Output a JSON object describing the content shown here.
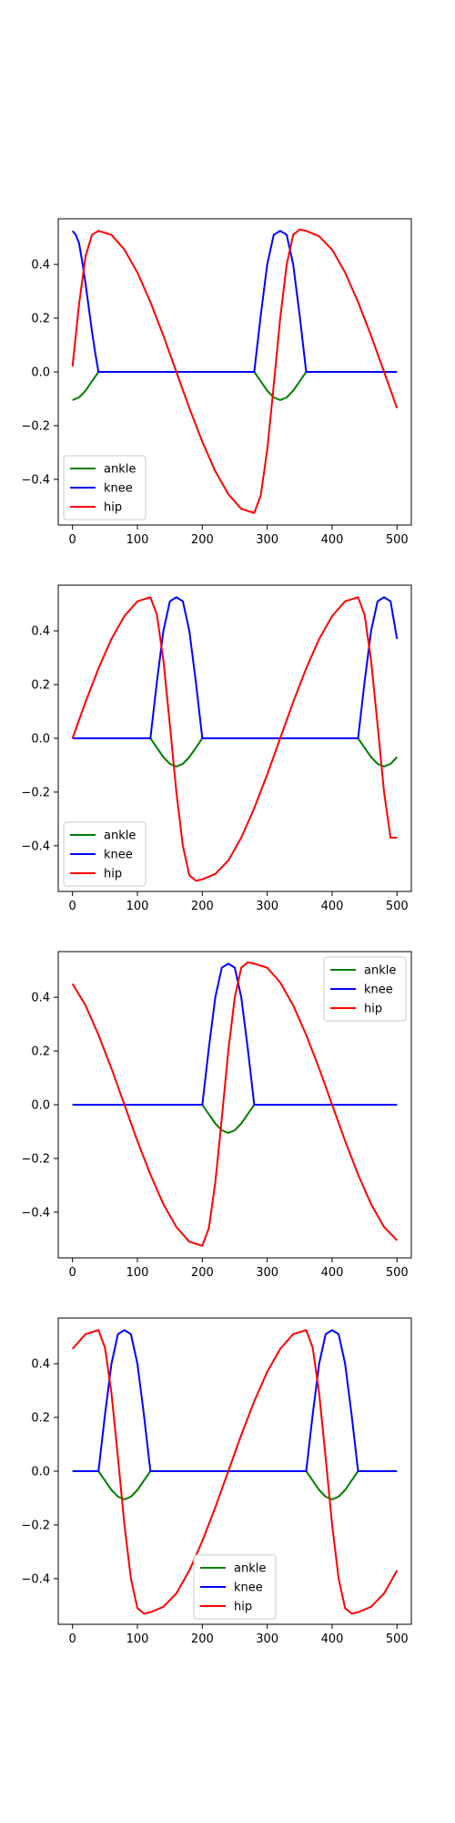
{
  "chart_data": [
    {
      "type": "line",
      "xlim": [
        -22,
        522
      ],
      "ylim": [
        -0.57,
        0.57
      ],
      "xticks": [
        0,
        100,
        200,
        300,
        400,
        500
      ],
      "yticks": [
        -0.4,
        -0.2,
        0.0,
        0.2,
        0.4
      ],
      "xtick_labels": [
        "0",
        "100",
        "200",
        "300",
        "400",
        "500"
      ],
      "ytick_labels": [
        "−0.4",
        "−0.2",
        "0.0",
        "0.2",
        "0.4"
      ],
      "legend": {
        "placement": "lower-left",
        "labels": [
          "ankle",
          "knee",
          "hip"
        ]
      },
      "series": [
        {
          "name": "ankle",
          "color": "#008000",
          "x": [
            0,
            10,
            20,
            30,
            40,
            80,
            120,
            160,
            200,
            240,
            280,
            290,
            300,
            310,
            320,
            330,
            340,
            350,
            360,
            400,
            440,
            480,
            500
          ],
          "y": [
            -0.105,
            -0.095,
            -0.07,
            -0.035,
            0,
            0,
            0,
            0,
            0,
            0,
            0,
            -0.035,
            -0.07,
            -0.095,
            -0.105,
            -0.095,
            -0.07,
            -0.035,
            0,
            0,
            0,
            0,
            0
          ]
        },
        {
          "name": "knee",
          "color": "#0000ff",
          "x": [
            0,
            5,
            10,
            15,
            20,
            25,
            30,
            35,
            40,
            80,
            120,
            160,
            200,
            240,
            280,
            290,
            300,
            310,
            320,
            330,
            340,
            350,
            360,
            400,
            440,
            480,
            500
          ],
          "y": [
            0.525,
            0.51,
            0.48,
            0.41,
            0.33,
            0.24,
            0.15,
            0.07,
            0,
            0,
            0,
            0,
            0,
            0,
            0,
            0.21,
            0.4,
            0.51,
            0.525,
            0.51,
            0.4,
            0.21,
            0,
            0,
            0,
            0,
            0
          ]
        },
        {
          "name": "hip",
          "color": "#ff0000",
          "x": [
            0,
            10,
            20,
            30,
            40,
            60,
            80,
            100,
            120,
            140,
            160,
            180,
            200,
            220,
            240,
            260,
            280,
            290,
            300,
            310,
            320,
            330,
            340,
            350,
            360,
            380,
            400,
            420,
            440,
            460,
            480,
            500
          ],
          "y": [
            0.02,
            0.25,
            0.43,
            0.51,
            0.525,
            0.51,
            0.455,
            0.37,
            0.26,
            0.135,
            0,
            -0.135,
            -0.26,
            -0.37,
            -0.455,
            -0.51,
            -0.525,
            -0.46,
            -0.29,
            -0.05,
            0.2,
            0.4,
            0.51,
            0.53,
            0.525,
            0.505,
            0.455,
            0.37,
            0.26,
            0.135,
            0,
            -0.135
          ]
        }
      ]
    },
    {
      "type": "line",
      "xlim": [
        -22,
        522
      ],
      "ylim": [
        -0.57,
        0.57
      ],
      "xticks": [
        0,
        100,
        200,
        300,
        400,
        500
      ],
      "yticks": [
        -0.4,
        -0.2,
        0.0,
        0.2,
        0.4
      ],
      "xtick_labels": [
        "0",
        "100",
        "200",
        "300",
        "400",
        "500"
      ],
      "ytick_labels": [
        "−0.4",
        "−0.2",
        "0.0",
        "0.2",
        "0.4"
      ],
      "legend": {
        "placement": "lower-left",
        "labels": [
          "ankle",
          "knee",
          "hip"
        ]
      },
      "series": [
        {
          "name": "ankle",
          "color": "#008000",
          "x": [
            0,
            40,
            80,
            120,
            130,
            140,
            150,
            160,
            170,
            180,
            190,
            200,
            240,
            280,
            320,
            360,
            400,
            440,
            450,
            460,
            470,
            480,
            490,
            500
          ],
          "y": [
            0,
            0,
            0,
            0,
            -0.035,
            -0.07,
            -0.095,
            -0.105,
            -0.095,
            -0.07,
            -0.035,
            0,
            0,
            0,
            0,
            0,
            0,
            0,
            -0.035,
            -0.07,
            -0.095,
            -0.105,
            -0.095,
            -0.07
          ]
        },
        {
          "name": "knee",
          "color": "#0000ff",
          "x": [
            0,
            40,
            80,
            120,
            130,
            140,
            150,
            160,
            170,
            180,
            190,
            200,
            240,
            280,
            320,
            360,
            400,
            440,
            450,
            460,
            470,
            480,
            490,
            500
          ],
          "y": [
            0,
            0,
            0,
            0,
            0.21,
            0.4,
            0.51,
            0.525,
            0.51,
            0.4,
            0.21,
            0,
            0,
            0,
            0,
            0,
            0,
            0,
            0.21,
            0.4,
            0.51,
            0.525,
            0.51,
            0.37
          ]
        },
        {
          "name": "hip",
          "color": "#ff0000",
          "x": [
            0,
            20,
            40,
            60,
            80,
            100,
            120,
            130,
            140,
            150,
            160,
            170,
            180,
            190,
            200,
            220,
            240,
            260,
            280,
            300,
            320,
            340,
            360,
            380,
            400,
            420,
            440,
            450,
            460,
            470,
            480,
            490,
            500
          ],
          "y": [
            0,
            0.135,
            0.26,
            0.37,
            0.455,
            0.51,
            0.525,
            0.46,
            0.29,
            0.05,
            -0.2,
            -0.4,
            -0.51,
            -0.53,
            -0.525,
            -0.505,
            -0.455,
            -0.37,
            -0.26,
            -0.135,
            0,
            0.135,
            0.26,
            0.37,
            0.455,
            0.51,
            0.525,
            0.46,
            0.29,
            0.05,
            -0.2,
            -0.37,
            -0.37
          ]
        }
      ]
    },
    {
      "type": "line",
      "xlim": [
        -22,
        522
      ],
      "ylim": [
        -0.57,
        0.57
      ],
      "xticks": [
        0,
        100,
        200,
        300,
        400,
        500
      ],
      "yticks": [
        -0.4,
        -0.2,
        0.0,
        0.2,
        0.4
      ],
      "xtick_labels": [
        "0",
        "100",
        "200",
        "300",
        "400",
        "500"
      ],
      "ytick_labels": [
        "−0.4",
        "−0.2",
        "0.0",
        "0.2",
        "0.4"
      ],
      "legend": {
        "placement": "upper-right",
        "labels": [
          "ankle",
          "knee",
          "hip"
        ]
      },
      "series": [
        {
          "name": "ankle",
          "color": "#008000",
          "x": [
            0,
            40,
            80,
            120,
            160,
            200,
            210,
            220,
            230,
            240,
            250,
            260,
            270,
            280,
            320,
            360,
            400,
            440,
            480,
            500
          ],
          "y": [
            0,
            0,
            0,
            0,
            0,
            0,
            -0.035,
            -0.07,
            -0.095,
            -0.105,
            -0.095,
            -0.07,
            -0.035,
            0,
            0,
            0,
            0,
            0,
            0,
            0
          ]
        },
        {
          "name": "knee",
          "color": "#0000ff",
          "x": [
            0,
            40,
            80,
            120,
            160,
            200,
            210,
            220,
            230,
            240,
            250,
            260,
            270,
            280,
            320,
            360,
            400,
            440,
            480,
            500
          ],
          "y": [
            0,
            0,
            0,
            0,
            0,
            0,
            0.21,
            0.4,
            0.51,
            0.525,
            0.51,
            0.4,
            0.21,
            0,
            0,
            0,
            0,
            0,
            0,
            0
          ]
        },
        {
          "name": "hip",
          "color": "#ff0000",
          "x": [
            0,
            20,
            40,
            60,
            80,
            100,
            120,
            140,
            160,
            180,
            200,
            210,
            220,
            230,
            240,
            250,
            260,
            270,
            280,
            300,
            320,
            340,
            360,
            380,
            400,
            420,
            440,
            460,
            480,
            500
          ],
          "y": [
            0.45,
            0.37,
            0.26,
            0.135,
            0,
            -0.135,
            -0.26,
            -0.37,
            -0.455,
            -0.51,
            -0.525,
            -0.46,
            -0.29,
            -0.05,
            0.2,
            0.4,
            0.51,
            0.53,
            0.525,
            0.51,
            0.455,
            0.37,
            0.26,
            0.135,
            0,
            -0.135,
            -0.26,
            -0.37,
            -0.455,
            -0.505
          ]
        }
      ]
    },
    {
      "type": "line",
      "xlim": [
        -22,
        522
      ],
      "ylim": [
        -0.57,
        0.57
      ],
      "xticks": [
        0,
        100,
        200,
        300,
        400,
        500
      ],
      "yticks": [
        -0.4,
        -0.2,
        0.0,
        0.2,
        0.4
      ],
      "xtick_labels": [
        "0",
        "100",
        "200",
        "300",
        "400",
        "500"
      ],
      "ytick_labels": [
        "−0.4",
        "−0.2",
        "0.0",
        "0.2",
        "0.4"
      ],
      "legend": {
        "placement": "lower-center",
        "labels": [
          "ankle",
          "knee",
          "hip"
        ]
      },
      "series": [
        {
          "name": "ankle",
          "color": "#008000",
          "x": [
            0,
            40,
            50,
            60,
            70,
            80,
            90,
            100,
            110,
            120,
            160,
            200,
            240,
            280,
            320,
            360,
            370,
            380,
            390,
            400,
            410,
            420,
            430,
            440,
            480,
            500
          ],
          "y": [
            0,
            0,
            -0.035,
            -0.07,
            -0.095,
            -0.105,
            -0.095,
            -0.07,
            -0.035,
            0,
            0,
            0,
            0,
            0,
            0,
            0,
            -0.035,
            -0.07,
            -0.095,
            -0.105,
            -0.095,
            -0.07,
            -0.035,
            0,
            0,
            0
          ]
        },
        {
          "name": "knee",
          "color": "#0000ff",
          "x": [
            0,
            40,
            50,
            60,
            70,
            80,
            90,
            100,
            110,
            120,
            160,
            200,
            240,
            280,
            320,
            360,
            370,
            380,
            390,
            400,
            410,
            420,
            430,
            440,
            480,
            500
          ],
          "y": [
            0,
            0,
            0.21,
            0.4,
            0.51,
            0.525,
            0.51,
            0.4,
            0.21,
            0,
            0,
            0,
            0,
            0,
            0,
            0,
            0.21,
            0.4,
            0.51,
            0.525,
            0.51,
            0.4,
            0.21,
            0,
            0,
            0
          ]
        },
        {
          "name": "hip",
          "color": "#ff0000",
          "x": [
            0,
            20,
            40,
            50,
            60,
            70,
            80,
            90,
            100,
            110,
            120,
            140,
            160,
            180,
            200,
            220,
            240,
            260,
            280,
            300,
            320,
            340,
            360,
            370,
            380,
            390,
            400,
            410,
            420,
            430,
            440,
            460,
            480,
            500
          ],
          "y": [
            0.455,
            0.51,
            0.525,
            0.46,
            0.29,
            0.05,
            -0.2,
            -0.4,
            -0.51,
            -0.53,
            -0.525,
            -0.505,
            -0.455,
            -0.37,
            -0.26,
            -0.135,
            0,
            0.135,
            0.26,
            0.37,
            0.455,
            0.51,
            0.525,
            0.46,
            0.29,
            0.05,
            -0.2,
            -0.4,
            -0.51,
            -0.53,
            -0.525,
            -0.505,
            -0.455,
            -0.37
          ]
        }
      ]
    }
  ]
}
